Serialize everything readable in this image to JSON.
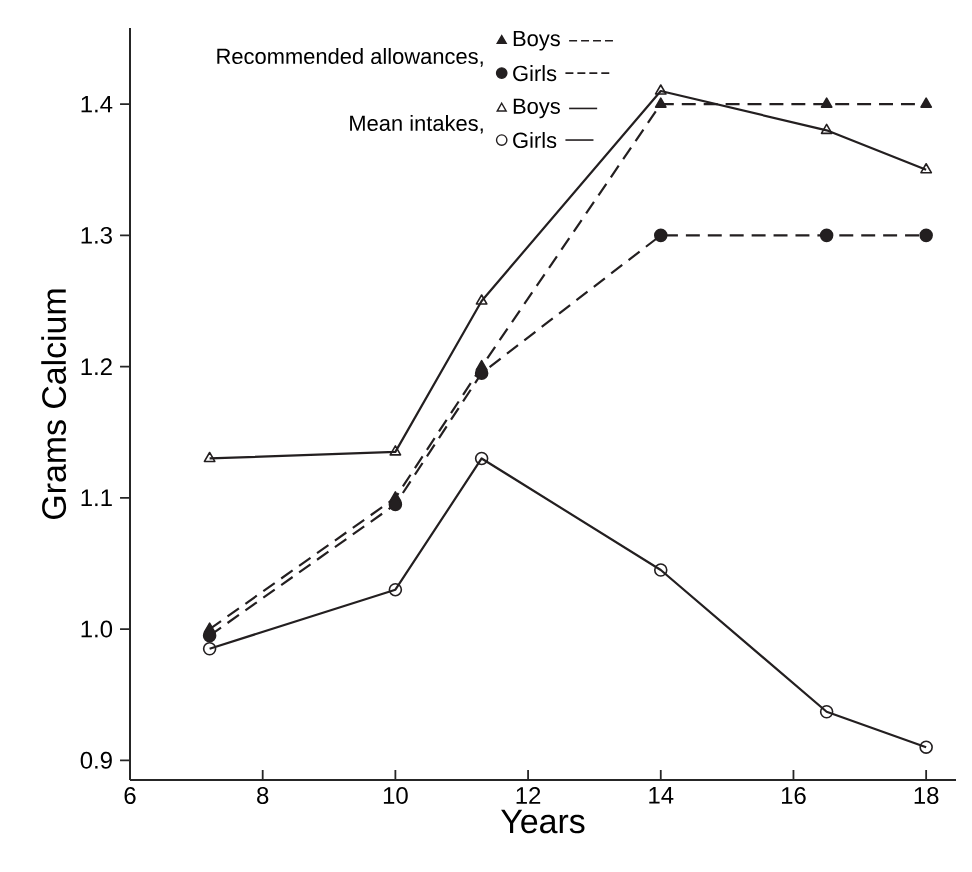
{
  "chart_data": {
    "type": "line",
    "xlabel": "Years",
    "ylabel": "Grams Calcium",
    "x": [
      7.2,
      10,
      11.3,
      14,
      16.5,
      18
    ],
    "xlim": [
      6,
      18.45
    ],
    "xticks": [
      6,
      8,
      10,
      12,
      14,
      16,
      18
    ],
    "ylim": [
      0.885,
      1.458
    ],
    "yticks": [
      {
        "value": 0.9,
        "label": "0.9"
      },
      {
        "value": 1.0,
        "label": "1.0"
      },
      {
        "value": 1.1,
        "label": "1.1"
      },
      {
        "value": 1.2,
        "label": "1.2"
      },
      {
        "value": 1.3,
        "label": "1.3"
      },
      {
        "value": 1.4,
        "label": "1.4"
      }
    ],
    "legend": "top",
    "grid": false,
    "annotations": [
      "Recommended allowances,",
      "Mean intakes,"
    ],
    "series": [
      {
        "name": "Boys",
        "color": "#231f20",
        "marker": "triangle",
        "line_style": "dashed",
        "values": [
          1.0,
          1.1,
          1.2,
          1.4,
          1.4,
          1.4
        ]
      },
      {
        "name": "Girls",
        "color": "#231f20",
        "marker": "circle",
        "line_style": "dashed",
        "values": [
          0.995,
          1.095,
          1.195,
          1.3,
          1.3,
          1.3
        ]
      },
      {
        "name": "Boys",
        "color": "#231f20",
        "marker": "triangle",
        "line_style": "solid",
        "values": [
          1.13,
          1.135,
          1.25,
          1.41,
          1.38,
          1.35
        ]
      },
      {
        "name": "Girls",
        "color": "#231f20",
        "marker": "circle",
        "line_style": "solid",
        "values": [
          0.985,
          1.03,
          1.13,
          1.045,
          0.937,
          0.91
        ]
      }
    ]
  }
}
